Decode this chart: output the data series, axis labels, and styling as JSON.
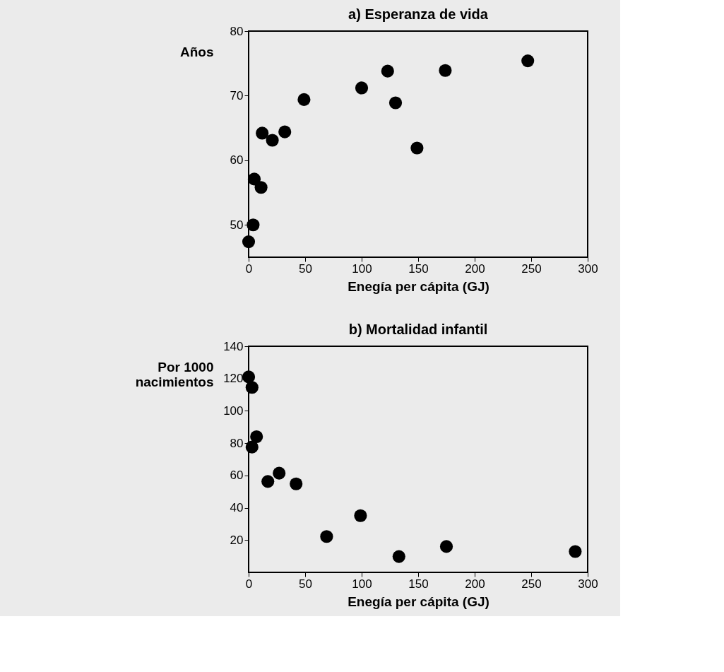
{
  "chart_data": [
    {
      "type": "scatter",
      "title": "a) Esperanza de vida",
      "xlabel": "Enegía per cápita  (GJ)",
      "ylabel": "Años",
      "marker": "circle",
      "grid": false,
      "x": [
        0,
        4,
        5,
        11,
        12,
        21,
        32,
        49,
        100,
        123,
        130,
        149,
        174,
        247
      ],
      "series": [
        {
          "color": "#000000",
          "values": [
            47.4,
            50,
            57.1,
            55.8,
            64.2,
            63.1,
            64.4,
            69.4,
            71.2,
            73.8,
            68.9,
            61.9,
            73.9,
            75.4
          ]
        }
      ],
      "xlim": [
        0,
        300
      ],
      "xticks": [
        0,
        50,
        100,
        150,
        200,
        250,
        300
      ],
      "ylim": [
        45,
        80
      ],
      "yticks": [
        50,
        60,
        70,
        80
      ]
    },
    {
      "type": "scatter",
      "title": "b) Mortalidad infantil",
      "xlabel": "Enegía per cápita  (GJ)",
      "ylabel": "Por 1000\nnacimientos",
      "marker": "circle",
      "grid": false,
      "x": [
        0,
        3,
        7,
        3,
        17,
        27,
        42,
        69,
        99,
        133,
        175,
        289
      ],
      "series": [
        {
          "color": "#000000",
          "values": [
            121,
            114.5,
            84,
            77.6,
            56.3,
            61.4,
            54.8,
            22.2,
            35.1,
            9.8,
            16,
            12.9
          ]
        }
      ],
      "xlim": [
        0,
        300
      ],
      "xticks": [
        0,
        50,
        100,
        150,
        200,
        250,
        300
      ],
      "ylim": [
        0,
        140
      ],
      "yticks": [
        20,
        40,
        60,
        80,
        100,
        120,
        140
      ]
    }
  ]
}
